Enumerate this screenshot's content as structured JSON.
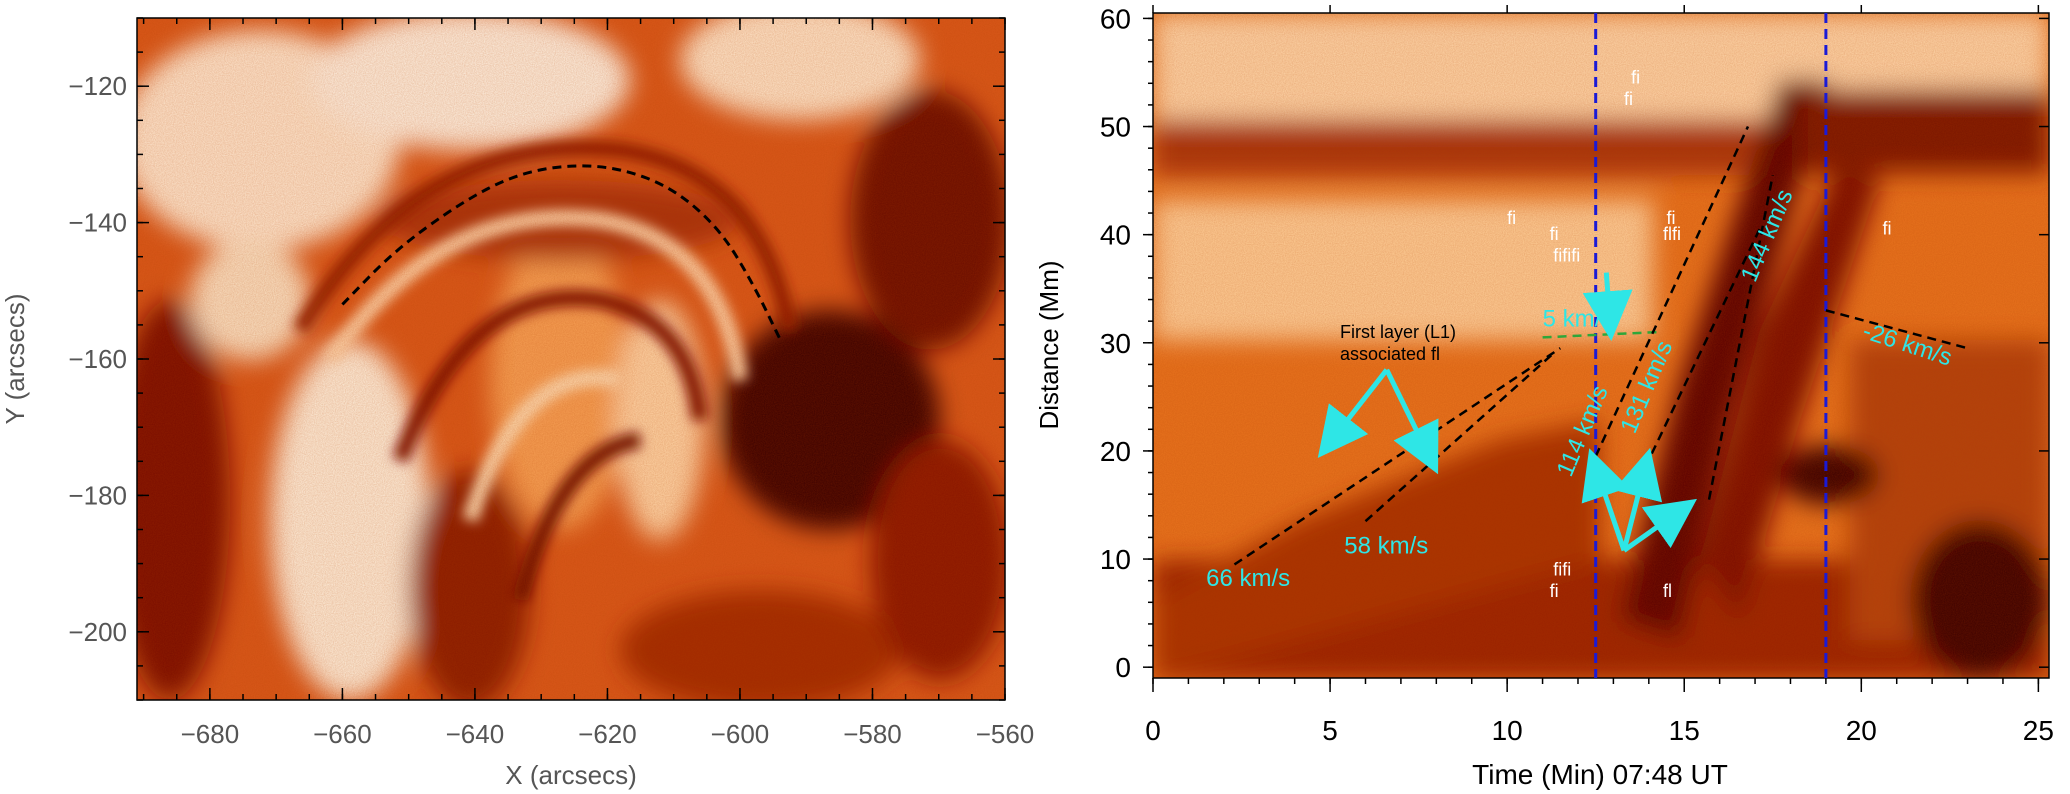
{
  "colors": {
    "accent_cyan": "#2ee6e6",
    "slit_blue": "#1a1ad6",
    "dark_red": "#6a0800",
    "mid_orange": "#e06a1a",
    "pale": "#fff4e6"
  },
  "chart_data": [
    {
      "type": "heatmap",
      "panel": "left",
      "description_of_marks": "solar image with dashed loop trace",
      "xlabel": "X (arcsecs)",
      "ylabel": "Y (arcsecs)",
      "xlim": [
        -691,
        -560
      ],
      "ylim": [
        -210,
        -110
      ],
      "xticks": [
        -680,
        -660,
        -640,
        -620,
        -600,
        -580,
        -560
      ],
      "yticks": [
        -120,
        -140,
        -160,
        -180,
        -200
      ],
      "xtick_labels": [
        "−680",
        "−660",
        "−640",
        "−620",
        "−600",
        "−580",
        "−560"
      ],
      "ytick_labels": [
        "−120",
        "−140",
        "−160",
        "−180",
        "−200"
      ],
      "dashed_path": [
        [
          -660,
          -152
        ],
        [
          -652,
          -144
        ],
        [
          -642,
          -137
        ],
        [
          -634,
          -133
        ],
        [
          -626,
          -131.5
        ],
        [
          -618,
          -132
        ],
        [
          -610,
          -135
        ],
        [
          -603,
          -141
        ],
        [
          -598,
          -149
        ],
        [
          -594,
          -157
        ]
      ]
    },
    {
      "type": "heatmap",
      "panel": "right",
      "xlabel": "Time (Min) 07:48 UT",
      "ylabel": "Distance (Mm)",
      "xlim": [
        0,
        25.3
      ],
      "ylim": [
        -1,
        60.5
      ],
      "xticks": [
        0,
        5,
        10,
        15,
        20,
        25
      ],
      "yticks": [
        0,
        10,
        20,
        30,
        40,
        50,
        60
      ],
      "vertical_lines": [
        12.5,
        19.0
      ],
      "fits": [
        {
          "label": "66 km/s",
          "x": [
            2.3,
            11.5
          ],
          "y": [
            9.5,
            29.5
          ]
        },
        {
          "label": "58 km/s",
          "x": [
            6.0,
            11.3
          ],
          "y": [
            13.5,
            29.0
          ]
        },
        {
          "label": "5 km/s",
          "x": [
            11.0,
            14.3
          ],
          "y": [
            30.5,
            31.0
          ]
        },
        {
          "label": "114 km/s",
          "x": [
            12.5,
            16.8
          ],
          "y": [
            19.5,
            50.0
          ]
        },
        {
          "label": "131 km/s",
          "x": [
            13.9,
            17.2
          ],
          "y": [
            18.5,
            41.0
          ]
        },
        {
          "label": "144 km/s",
          "x": [
            15.7,
            17.5
          ],
          "y": [
            15.5,
            45.5
          ]
        },
        {
          "label": "-26 km/s",
          "x": [
            19.0,
            23.0
          ],
          "y": [
            33.0,
            29.5
          ]
        }
      ],
      "annotations": {
        "first_layer_line1": "First layer (L1)",
        "first_layer_line2": "associated fl",
        "small_labels": [
          {
            "text": "fi",
            "x": 13.5,
            "y": 54
          },
          {
            "text": "fi",
            "x": 13.3,
            "y": 52
          },
          {
            "text": "fi",
            "x": 10.0,
            "y": 41
          },
          {
            "text": "fi",
            "x": 11.2,
            "y": 39.5
          },
          {
            "text": "fififi",
            "x": 11.3,
            "y": 37.5
          },
          {
            "text": "fi",
            "x": 14.5,
            "y": 41
          },
          {
            "text": "flfi",
            "x": 14.4,
            "y": 39.5
          },
          {
            "text": "fi",
            "x": 20.6,
            "y": 40
          },
          {
            "text": "fifi",
            "x": 11.3,
            "y": 8.5
          },
          {
            "text": "fi",
            "x": 11.2,
            "y": 6.5
          },
          {
            "text": "fl",
            "x": 14.4,
            "y": 6.5
          }
        ]
      }
    }
  ]
}
